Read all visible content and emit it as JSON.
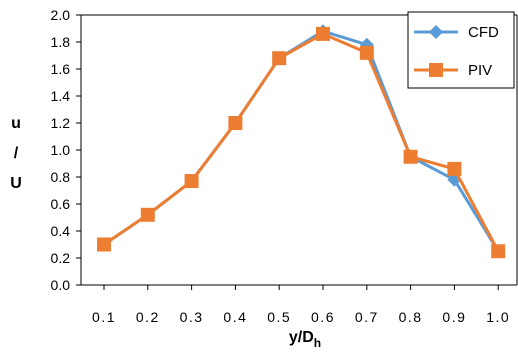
{
  "chart_data": {
    "type": "line",
    "x": [
      0.1,
      0.2,
      0.3,
      0.4,
      0.5,
      0.6,
      0.7,
      0.8,
      0.9,
      1.0
    ],
    "x_tick_labels": [
      "0.1",
      "0.2",
      "0.3",
      "0.4",
      "0.5",
      "0.6",
      "0.7",
      "0.8",
      "0.9",
      "1.0"
    ],
    "series": [
      {
        "name": "CFD",
        "color": "#5B9BD5",
        "marker": "diamond",
        "values": [
          0.3,
          0.52,
          0.77,
          1.2,
          1.68,
          1.88,
          1.78,
          0.95,
          0.78,
          0.25
        ]
      },
      {
        "name": "PIV",
        "color": "#ED7D31",
        "marker": "square",
        "values": [
          0.3,
          0.52,
          0.77,
          1.2,
          1.68,
          1.86,
          1.72,
          0.95,
          0.86,
          0.25
        ]
      }
    ],
    "xlabel": {
      "main": "y/D",
      "sub": "h"
    },
    "ylabel_lines": [
      "u",
      "/",
      "U"
    ],
    "ylim": [
      0.0,
      2.0
    ],
    "y_ticks": [
      "0.0",
      "0.2",
      "0.4",
      "0.6",
      "0.8",
      "1.0",
      "1.2",
      "1.4",
      "1.6",
      "1.8",
      "2.0"
    ],
    "grid": false,
    "legend_position": "top-right"
  }
}
